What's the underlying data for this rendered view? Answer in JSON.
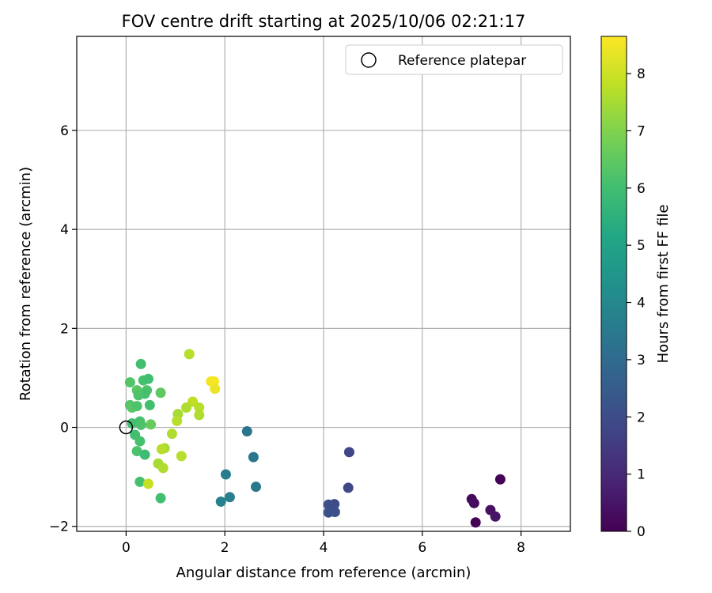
{
  "chart_data": {
    "type": "scatter",
    "title": "FOV centre drift starting at 2025/10/06 02:21:17",
    "xlabel": "Angular distance from reference (arcmin)",
    "ylabel": "Rotation from reference (arcmin)",
    "xlim": [
      -1.0,
      9.0
    ],
    "ylim": [
      -2.1,
      7.9
    ],
    "xticks": [
      0,
      2,
      4,
      6,
      8
    ],
    "yticks": [
      -2,
      0,
      2,
      4,
      6
    ],
    "xtick_labels": [
      "0",
      "2",
      "4",
      "6",
      "8"
    ],
    "ytick_labels": [
      "−2",
      "0",
      "2",
      "4",
      "6"
    ],
    "grid": true,
    "legend": {
      "placement": "top-right",
      "entries": [
        "Reference platepar"
      ]
    },
    "reference_point": {
      "x": 0,
      "y": 0,
      "label": "Reference platepar",
      "marker": "open-circle"
    },
    "colorbar": {
      "label": "Hours from first FF file",
      "colormap": "viridis",
      "range": [
        0,
        8.65
      ],
      "ticks": [
        0,
        1,
        2,
        3,
        4,
        5,
        6,
        7,
        8
      ],
      "tick_labels": [
        "0",
        "1",
        "2",
        "3",
        "4",
        "5",
        "6",
        "7",
        "8"
      ]
    },
    "points": [
      {
        "x": 7.08,
        "y": -1.92,
        "hours": 0.05
      },
      {
        "x": 7.58,
        "y": -1.05,
        "hours": 0.1
      },
      {
        "x": 7.0,
        "y": -1.45,
        "hours": 0.2
      },
      {
        "x": 7.05,
        "y": -1.53,
        "hours": 0.3
      },
      {
        "x": 7.38,
        "y": -1.67,
        "hours": 0.4
      },
      {
        "x": 7.48,
        "y": -1.8,
        "hours": 0.5
      },
      {
        "x": 4.52,
        "y": -0.5,
        "hours": 1.8
      },
      {
        "x": 4.5,
        "y": -1.22,
        "hours": 1.9
      },
      {
        "x": 4.22,
        "y": -1.55,
        "hours": 2.0
      },
      {
        "x": 4.1,
        "y": -1.56,
        "hours": 2.05
      },
      {
        "x": 4.1,
        "y": -1.72,
        "hours": 2.1
      },
      {
        "x": 4.23,
        "y": -1.71,
        "hours": 2.15
      },
      {
        "x": 2.45,
        "y": -0.08,
        "hours": 3.3
      },
      {
        "x": 2.58,
        "y": -0.6,
        "hours": 3.4
      },
      {
        "x": 2.63,
        "y": -1.2,
        "hours": 3.5
      },
      {
        "x": 2.02,
        "y": -0.95,
        "hours": 3.6
      },
      {
        "x": 2.1,
        "y": -1.41,
        "hours": 3.7
      },
      {
        "x": 1.92,
        "y": -1.5,
        "hours": 3.8
      },
      {
        "x": 0.3,
        "y": 1.28,
        "hours": 6.0
      },
      {
        "x": 0.35,
        "y": 0.95,
        "hours": 6.1
      },
      {
        "x": 0.45,
        "y": 0.98,
        "hours": 6.0
      },
      {
        "x": 0.08,
        "y": 0.91,
        "hours": 6.3
      },
      {
        "x": 0.22,
        "y": 0.75,
        "hours": 6.4
      },
      {
        "x": 0.42,
        "y": 0.75,
        "hours": 6.2
      },
      {
        "x": 0.38,
        "y": 0.68,
        "hours": 6.1
      },
      {
        "x": 0.25,
        "y": 0.65,
        "hours": 6.2
      },
      {
        "x": 0.7,
        "y": 0.7,
        "hours": 6.5
      },
      {
        "x": 0.08,
        "y": 0.45,
        "hours": 6.3
      },
      {
        "x": 0.12,
        "y": 0.4,
        "hours": 6.4
      },
      {
        "x": 0.22,
        "y": 0.43,
        "hours": 6.2
      },
      {
        "x": 0.48,
        "y": 0.45,
        "hours": 6.0
      },
      {
        "x": 0.28,
        "y": 0.12,
        "hours": 6.1
      },
      {
        "x": 0.12,
        "y": 0.08,
        "hours": 6.0
      },
      {
        "x": 0.3,
        "y": 0.05,
        "hours": 6.2
      },
      {
        "x": 0.5,
        "y": 0.06,
        "hours": 6.6
      },
      {
        "x": 0.18,
        "y": -0.15,
        "hours": 6.0
      },
      {
        "x": 0.28,
        "y": -0.28,
        "hours": 6.1
      },
      {
        "x": 0.22,
        "y": -0.48,
        "hours": 6.2
      },
      {
        "x": 0.38,
        "y": -0.55,
        "hours": 5.9
      },
      {
        "x": 0.28,
        "y": -1.1,
        "hours": 6.1
      },
      {
        "x": 0.7,
        "y": -1.43,
        "hours": 6.0
      },
      {
        "x": 1.28,
        "y": 1.48,
        "hours": 7.7
      },
      {
        "x": 1.35,
        "y": 0.52,
        "hours": 7.8
      },
      {
        "x": 1.22,
        "y": 0.4,
        "hours": 7.6
      },
      {
        "x": 1.48,
        "y": 0.4,
        "hours": 7.7
      },
      {
        "x": 1.05,
        "y": 0.27,
        "hours": 7.5
      },
      {
        "x": 1.48,
        "y": 0.25,
        "hours": 7.6
      },
      {
        "x": 1.03,
        "y": 0.13,
        "hours": 7.7
      },
      {
        "x": 0.93,
        "y": -0.13,
        "hours": 7.6
      },
      {
        "x": 0.78,
        "y": -0.42,
        "hours": 7.5
      },
      {
        "x": 0.72,
        "y": -0.44,
        "hours": 7.7
      },
      {
        "x": 1.12,
        "y": -0.58,
        "hours": 7.7
      },
      {
        "x": 0.65,
        "y": -0.73,
        "hours": 7.5
      },
      {
        "x": 0.75,
        "y": -0.82,
        "hours": 7.6
      },
      {
        "x": 0.45,
        "y": -1.14,
        "hours": 7.9
      },
      {
        "x": 1.72,
        "y": 0.93,
        "hours": 8.5
      },
      {
        "x": 1.78,
        "y": 0.93,
        "hours": 8.55
      },
      {
        "x": 1.8,
        "y": 0.78,
        "hours": 8.4
      }
    ]
  }
}
